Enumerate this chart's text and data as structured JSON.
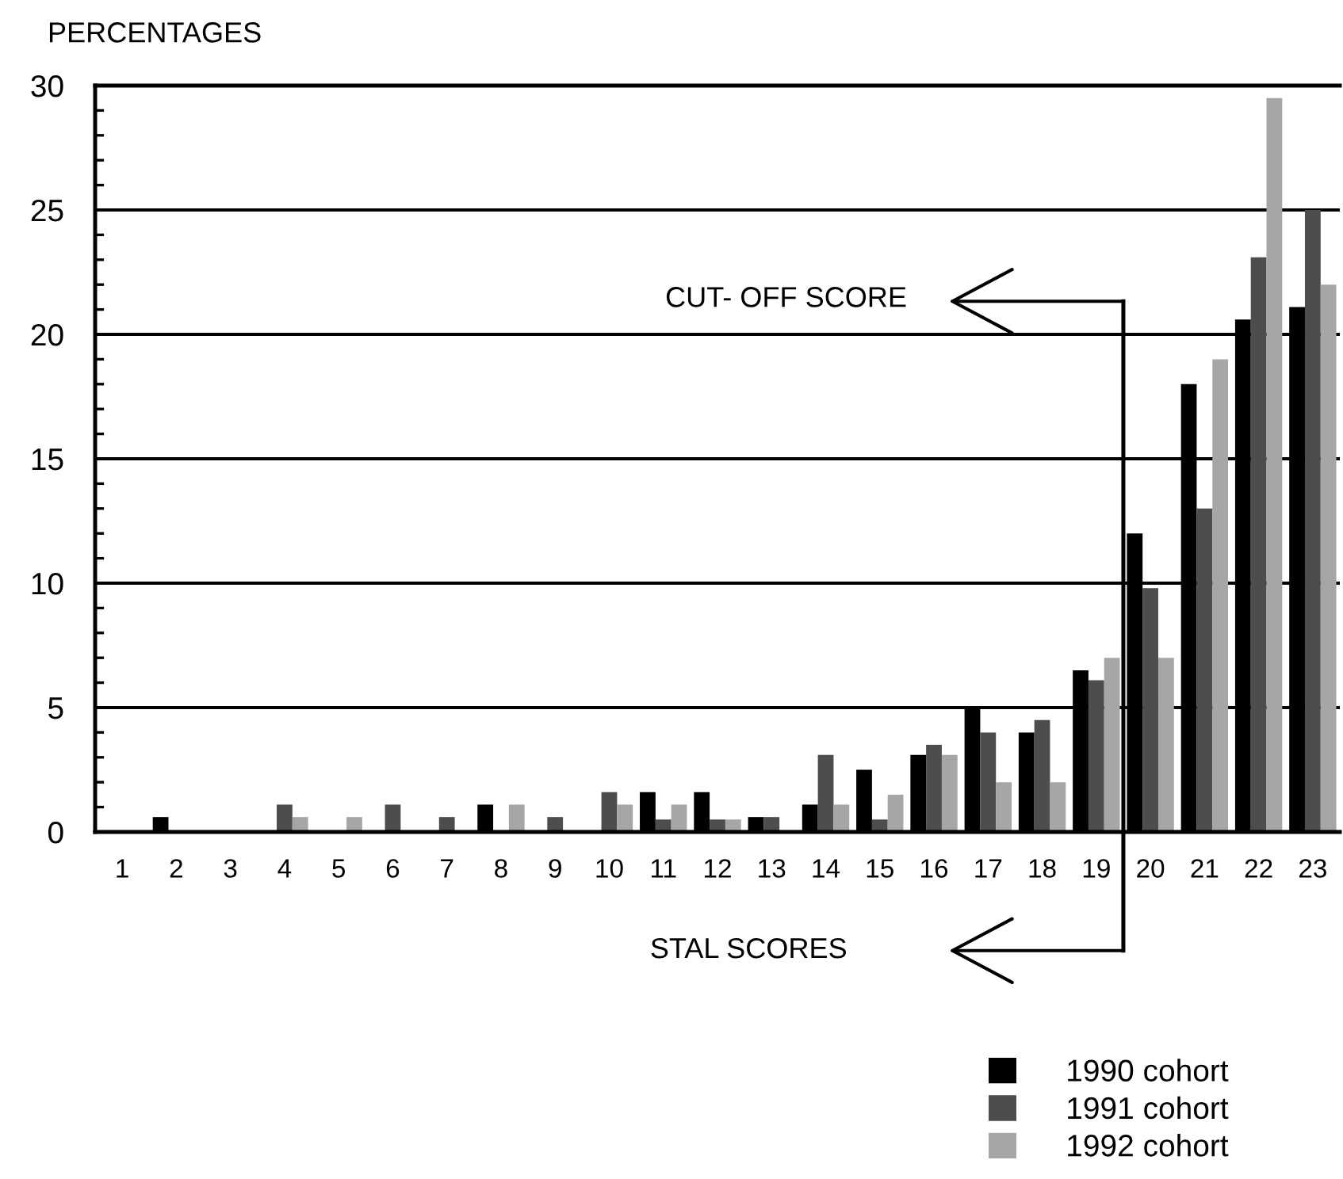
{
  "chart_data": {
    "type": "bar",
    "ylabel": "PERCENTAGES",
    "xlabel": "STAL SCORES",
    "xlim": [
      0.5,
      23.5
    ],
    "xticks": [
      1,
      2,
      3,
      4,
      5,
      6,
      7,
      8,
      9,
      10,
      11,
      12,
      13,
      14,
      15,
      16,
      17,
      18,
      19,
      20,
      21,
      22,
      23
    ],
    "ylim": [
      0,
      30
    ],
    "yticks": [
      0,
      {
        "value": 1,
        "label": null
      },
      {
        "value": 2,
        "label": null
      },
      {
        "value": 3,
        "label": null
      },
      {
        "value": 4,
        "label": null
      },
      5,
      {
        "value": 6,
        "label": null
      },
      {
        "value": 7,
        "label": null
      },
      {
        "value": 8,
        "label": null
      },
      {
        "value": 9,
        "label": null
      },
      10,
      {
        "value": 11,
        "label": null
      },
      {
        "value": 12,
        "label": null
      },
      {
        "value": 13,
        "label": null
      },
      {
        "value": 14,
        "label": null
      },
      15,
      {
        "value": 16,
        "label": null
      },
      {
        "value": 17,
        "label": null
      },
      {
        "value": 18,
        "label": null
      },
      {
        "value": 19,
        "label": null
      },
      20,
      {
        "value": 21,
        "label": null
      },
      {
        "value": 22,
        "label": null
      },
      {
        "value": 23,
        "label": null
      },
      {
        "value": 24,
        "label": null
      },
      25,
      {
        "value": 26,
        "label": null
      },
      {
        "value": 27,
        "label": null
      },
      {
        "value": 28,
        "label": null
      },
      {
        "value": 29,
        "label": null
      },
      30
    ],
    "grid": "y",
    "legend": "bottom right",
    "ref_lines": [
      {
        "axis": "x",
        "value": 19.5,
        "color": "#000000"
      }
    ],
    "annotations": [
      "CUT- OFF SCORE"
    ],
    "series": [
      {
        "name": "1990 cohort",
        "color": "#000000",
        "x": [
          2,
          8,
          11,
          12,
          13,
          14,
          15,
          16,
          17,
          18,
          19,
          20,
          21,
          22,
          23
        ],
        "values": [
          0.6,
          1.1,
          1.6,
          1.6,
          0.6,
          1.1,
          2.5,
          3.1,
          5.0,
          4.0,
          6.5,
          12.0,
          18.0,
          20.6,
          21.1
        ]
      },
      {
        "name": "1991 cohort",
        "color": "#4d4d4d",
        "x": [
          4,
          6,
          7,
          9,
          10,
          11,
          12,
          13,
          14,
          15,
          16,
          17,
          18,
          19,
          20,
          21,
          22,
          23
        ],
        "values": [
          1.1,
          1.1,
          0.6,
          0.6,
          1.6,
          0.5,
          0.5,
          0.6,
          3.1,
          0.5,
          3.5,
          4.0,
          4.5,
          6.1,
          9.8,
          13.0,
          23.1,
          25.0
        ]
      },
      {
        "name": "1992 cohort",
        "color": "#a6a6a6",
        "x": [
          4,
          5,
          8,
          10,
          11,
          12,
          14,
          15,
          16,
          17,
          18,
          19,
          20,
          21,
          22,
          23
        ],
        "values": [
          0.6,
          0.6,
          1.1,
          1.1,
          1.1,
          0.5,
          1.1,
          1.5,
          3.1,
          2.0,
          2.0,
          7.0,
          7.0,
          19.0,
          29.5,
          22.0
        ]
      }
    ]
  }
}
